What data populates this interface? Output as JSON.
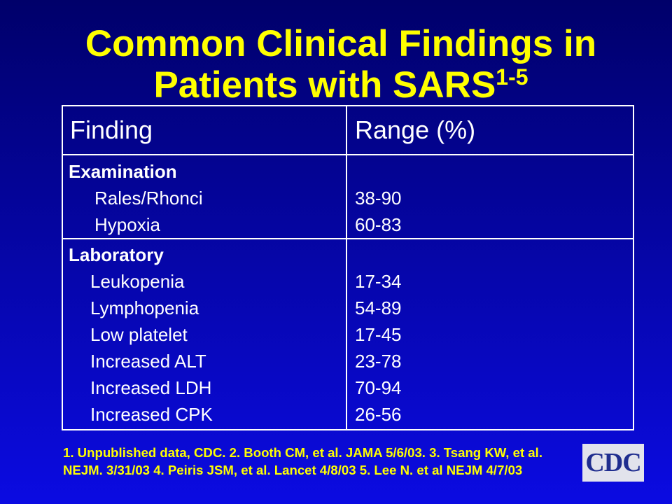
{
  "theme": {
    "background_top": "#00006a",
    "background_bottom": "#0b0be2",
    "title_color": "#ffff00",
    "table_text_color": "#ffffff",
    "table_border_color": "#ffffff",
    "footnote_color": "#ffff00"
  },
  "title": {
    "line1": "Common Clinical Findings in",
    "line2": "Patients with SARS",
    "superscript": "1-5"
  },
  "table": {
    "columns": [
      "Finding",
      "Range (%)"
    ],
    "sections": [
      {
        "heading": "Examination",
        "rows": [
          {
            "finding": "Rales/Rhonci",
            "range": "38-90"
          },
          {
            "finding": "Hypoxia",
            "range": "60-83"
          }
        ]
      },
      {
        "heading": "Laboratory",
        "rows": [
          {
            "finding": "Leukopenia",
            "range": "17-34"
          },
          {
            "finding": "Lymphopenia",
            "range": "54-89"
          },
          {
            "finding": "Low platelet",
            "range": "17-45"
          },
          {
            "finding": "Increased ALT",
            "range": "23-78"
          },
          {
            "finding": "Increased LDH",
            "range": "70-94"
          },
          {
            "finding": "Increased CPK",
            "range": "26-56"
          }
        ]
      }
    ]
  },
  "footnotes": {
    "lines": [
      "1. Unpublished data, CDC. 2. Booth CM, et al. JAMA 5/6/03. 3. Tsang KW, et al.",
      "NEJM. 3/31/03 4. Peiris JSM, et al. Lancet 4/8/03 5. Lee N. et al NEJM 4/7/03"
    ]
  },
  "logo": {
    "text": "CDC",
    "box_color": "#e2e3ec",
    "text_color": "#1f2d8f"
  }
}
